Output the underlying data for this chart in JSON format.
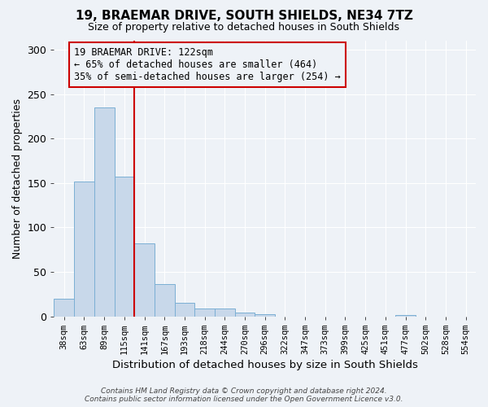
{
  "title": "19, BRAEMAR DRIVE, SOUTH SHIELDS, NE34 7TZ",
  "subtitle": "Size of property relative to detached houses in South Shields",
  "xlabel": "Distribution of detached houses by size in South Shields",
  "ylabel": "Number of detached properties",
  "bin_labels": [
    "38sqm",
    "63sqm",
    "89sqm",
    "115sqm",
    "141sqm",
    "167sqm",
    "193sqm",
    "218sqm",
    "244sqm",
    "270sqm",
    "296sqm",
    "322sqm",
    "347sqm",
    "373sqm",
    "399sqm",
    "425sqm",
    "451sqm",
    "477sqm",
    "502sqm",
    "528sqm",
    "554sqm"
  ],
  "bar_values": [
    20,
    152,
    235,
    157,
    82,
    36,
    15,
    9,
    9,
    4,
    2,
    0,
    0,
    0,
    0,
    0,
    0,
    1,
    0,
    0,
    0
  ],
  "bar_color": "#c8d8ea",
  "bar_edge_color": "#7bafd4",
  "vline_x": 3.5,
  "vline_color": "#cc0000",
  "annotation_box_text": "19 BRAEMAR DRIVE: 122sqm\n← 65% of detached houses are smaller (464)\n35% of semi-detached houses are larger (254) →",
  "annotation_box_color": "#cc0000",
  "ylim": [
    0,
    310
  ],
  "yticks": [
    0,
    50,
    100,
    150,
    200,
    250,
    300
  ],
  "footer_line1": "Contains HM Land Registry data © Crown copyright and database right 2024.",
  "footer_line2": "Contains public sector information licensed under the Open Government Licence v3.0.",
  "background_color": "#eef2f7",
  "grid_color": "#ffffff"
}
